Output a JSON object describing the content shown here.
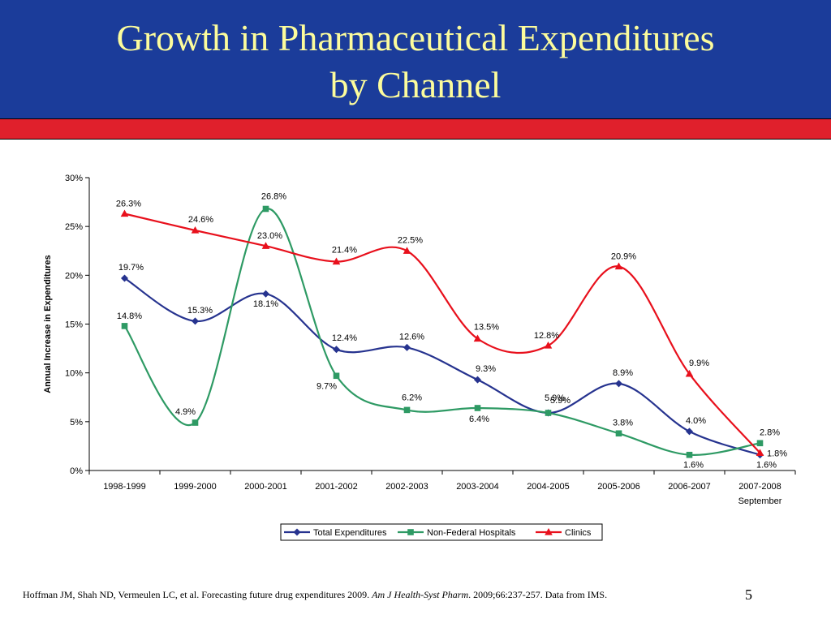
{
  "slide": {
    "title": "Growth in Pharmaceutical Expenditures\nby Channel",
    "footer_pre": "Hoffman JM, Shah ND, Vermeulen LC, et al.  Forecasting future drug expenditures 2009.  ",
    "footer_journal": "Am J Health-Syst Pharm",
    "footer_post": ". 2009;66:237-257.  Data from IMS.",
    "page_number": "5",
    "colors": {
      "header_bg": "#1b3c9a",
      "title": "#fcfc9c",
      "red_bar": "#e0202c"
    }
  },
  "chart_data": {
    "type": "line",
    "title": "",
    "xlabel": "",
    "ylabel": "Annual Increase in Expenditures",
    "categories": [
      "1998-1999",
      "1999-2000",
      "2000-2001",
      "2001-2002",
      "2002-2003",
      "2003-2004",
      "2004-2005",
      "2005-2006",
      "2006-2007",
      "2007-2008\nSeptember"
    ],
    "ylim": [
      0,
      30
    ],
    "yticks": [
      "0%",
      "5%",
      "10%",
      "15%",
      "20%",
      "25%",
      "30%"
    ],
    "grid": false,
    "smooth": true,
    "legend_position": "bottom",
    "series": [
      {
        "name": "Total Expenditures",
        "color": "#26338f",
        "marker": "diamond",
        "values": [
          19.7,
          15.3,
          18.1,
          12.4,
          12.6,
          9.3,
          5.9,
          8.9,
          4.0,
          1.6
        ],
        "labels": [
          "19.7%",
          "15.3%",
          "18.1%",
          "12.4%",
          "12.6%",
          "9.3%",
          "5.9%",
          "8.9%",
          "4.0%",
          "1.6%"
        ]
      },
      {
        "name": "Non-Federal Hospitals",
        "color": "#2e9a64",
        "marker": "square",
        "values": [
          14.8,
          4.9,
          26.8,
          9.7,
          6.2,
          6.4,
          5.9,
          3.8,
          1.6,
          2.8
        ],
        "labels": [
          "14.8%",
          "4.9%",
          "26.8%",
          "9.7%",
          "6.2%",
          "6.4%",
          "5.9%",
          "3.8%",
          "1.6%",
          "2.8%"
        ]
      },
      {
        "name": "Clinics",
        "color": "#e8101c",
        "marker": "triangle",
        "values": [
          26.3,
          24.6,
          23.0,
          21.4,
          22.5,
          13.5,
          12.8,
          20.9,
          9.9,
          1.8
        ],
        "labels": [
          "26.3%",
          "24.6%",
          "23.0%",
          "21.4%",
          "22.5%",
          "13.5%",
          "12.8%",
          "20.9%",
          "9.9%",
          "1.8%"
        ]
      }
    ]
  }
}
